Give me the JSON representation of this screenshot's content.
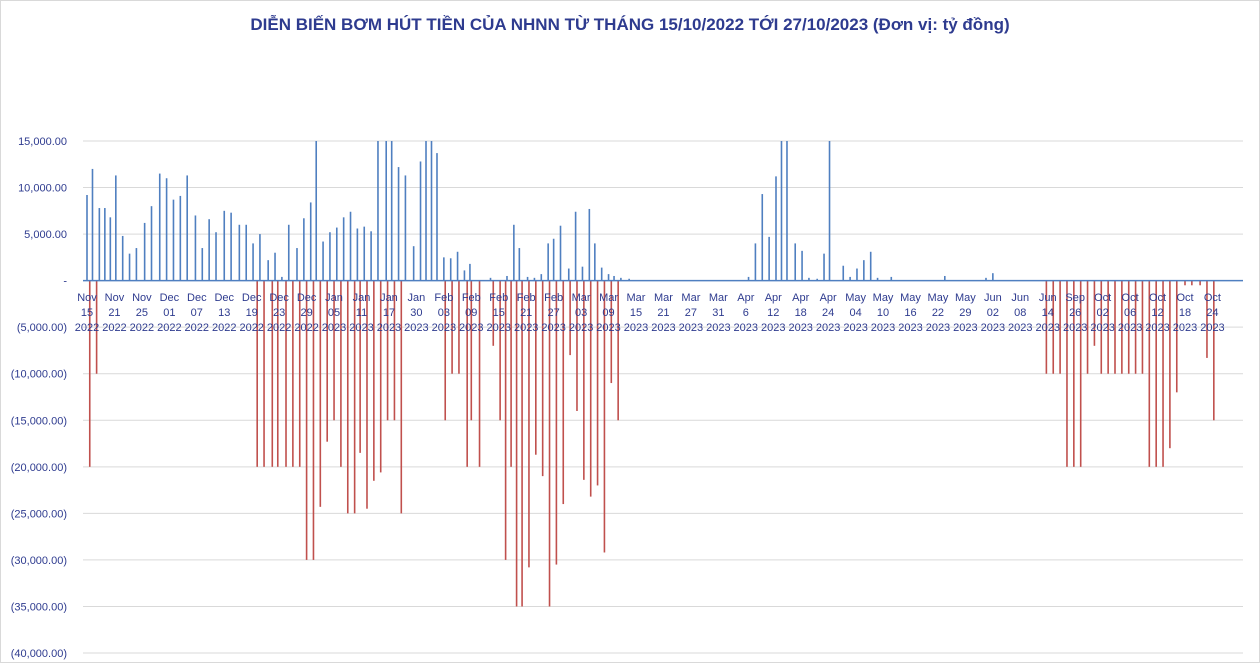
{
  "chart_data": {
    "type": "bar",
    "title": "DIỄN BIẾN BƠM HÚT TIỀN CỦA NHNN TỪ THÁNG 15/10/2022 TỚI 27/10/2023 (Đơn vị: tỷ đồng)",
    "xlabel": "",
    "ylabel": "",
    "ylim": [
      -40000,
      15000
    ],
    "y_ticks": [
      "15,000.00",
      "10,000.00",
      "5,000.00",
      "-",
      "(5,000.00)",
      "(10,000.00)",
      "(15,000.00)",
      "(20,000.00)",
      "(25,000.00)",
      "(30,000.00)",
      "(35,000.00)",
      "(40,000.00)"
    ],
    "y_tick_values": [
      15000,
      10000,
      5000,
      0,
      -5000,
      -10000,
      -15000,
      -20000,
      -25000,
      -30000,
      -35000,
      -40000
    ],
    "grid": true,
    "colors": {
      "injection": "#4f7fc0",
      "withdrawal": "#c0504d",
      "axis": "#4f7fc0",
      "text": "#2e3b8f",
      "grid": "#d9d9d9"
    },
    "x_ticks": [
      [
        "Nov",
        "15",
        "2022"
      ],
      [
        "Nov",
        "21",
        "2022"
      ],
      [
        "Nov",
        "25",
        "2022"
      ],
      [
        "Dec",
        "01",
        "2022"
      ],
      [
        "Dec",
        "07",
        "2022"
      ],
      [
        "Dec",
        "13",
        "2022"
      ],
      [
        "Dec",
        "19",
        "2022"
      ],
      [
        "Dec",
        "23",
        "2022"
      ],
      [
        "Dec",
        "29",
        "2022"
      ],
      [
        "Jan",
        "05",
        "2023"
      ],
      [
        "Jan",
        "11",
        "2023"
      ],
      [
        "Jan",
        "17",
        "2023"
      ],
      [
        "Jan",
        "30",
        "2023"
      ],
      [
        "Feb",
        "03",
        "2023"
      ],
      [
        "Feb",
        "09",
        "2023"
      ],
      [
        "Feb",
        "15",
        "2023"
      ],
      [
        "Feb",
        "21",
        "2023"
      ],
      [
        "Feb",
        "27",
        "2023"
      ],
      [
        "Mar",
        "03",
        "2023"
      ],
      [
        "Mar",
        "09",
        "2023"
      ],
      [
        "Mar",
        "15",
        "2023"
      ],
      [
        "Mar",
        "21",
        "2023"
      ],
      [
        "Mar",
        "27",
        "2023"
      ],
      [
        "Mar",
        "31",
        "2023"
      ],
      [
        "Apr",
        "6",
        "2023"
      ],
      [
        "Apr",
        "12",
        "2023"
      ],
      [
        "Apr",
        "18",
        "2023"
      ],
      [
        "Apr",
        "24",
        "2023"
      ],
      [
        "May",
        "04",
        "2023"
      ],
      [
        "May",
        "10",
        "2023"
      ],
      [
        "May",
        "16",
        "2023"
      ],
      [
        "May",
        "22",
        "2023"
      ],
      [
        "May",
        "29",
        "2023"
      ],
      [
        "Jun",
        "02",
        "2023"
      ],
      [
        "Jun",
        "08",
        "2023"
      ],
      [
        "Jun",
        "14",
        "2023"
      ],
      [
        "Sep",
        "26",
        "2023"
      ],
      [
        "Oct",
        "02",
        "2023"
      ],
      [
        "Oct",
        "06",
        "2023"
      ],
      [
        "Oct",
        "12",
        "2023"
      ],
      [
        "Oct",
        "18",
        "2023"
      ],
      [
        "Oct",
        "24",
        "2023"
      ]
    ],
    "bars": {
      "injection": [
        [
          0.0,
          9200
        ],
        [
          0.2,
          12000
        ],
        [
          0.45,
          7800
        ],
        [
          0.65,
          7800
        ],
        [
          0.85,
          6800
        ],
        [
          1.05,
          11300
        ],
        [
          1.3,
          4800
        ],
        [
          1.55,
          2900
        ],
        [
          1.8,
          3500
        ],
        [
          2.1,
          6200
        ],
        [
          2.35,
          8000
        ],
        [
          2.65,
          11500
        ],
        [
          2.9,
          11000
        ],
        [
          3.15,
          8700
        ],
        [
          3.4,
          9100
        ],
        [
          3.65,
          11300
        ],
        [
          3.95,
          7000
        ],
        [
          4.2,
          3500
        ],
        [
          4.45,
          6600
        ],
        [
          4.7,
          5200
        ],
        [
          5.0,
          7500
        ],
        [
          5.25,
          7300
        ],
        [
          5.55,
          6000
        ],
        [
          5.8,
          6000
        ],
        [
          6.05,
          4000
        ],
        [
          6.3,
          5000
        ],
        [
          6.6,
          2200
        ],
        [
          6.85,
          3000
        ],
        [
          7.1,
          400
        ],
        [
          7.35,
          6000
        ],
        [
          7.65,
          3500
        ],
        [
          7.9,
          6700
        ],
        [
          8.15,
          8400
        ],
        [
          8.35,
          15000
        ],
        [
          8.6,
          4200
        ],
        [
          8.85,
          5200
        ],
        [
          9.1,
          5700
        ],
        [
          9.35,
          6800
        ],
        [
          9.6,
          7400
        ],
        [
          9.85,
          5600
        ],
        [
          10.1,
          5800
        ],
        [
          10.35,
          5300
        ],
        [
          10.6,
          15000
        ],
        [
          10.9,
          15000
        ],
        [
          11.1,
          15000
        ],
        [
          11.35,
          12200
        ],
        [
          11.6,
          11300
        ],
        [
          11.9,
          3700
        ],
        [
          12.15,
          12800
        ],
        [
          12.35,
          15000
        ],
        [
          12.55,
          15000
        ],
        [
          12.75,
          13700
        ],
        [
          13.0,
          2500
        ],
        [
          13.25,
          2400
        ],
        [
          13.5,
          3100
        ],
        [
          13.75,
          1100
        ],
        [
          13.95,
          1800
        ],
        [
          14.7,
          300
        ],
        [
          15.3,
          500
        ],
        [
          15.55,
          6000
        ],
        [
          15.75,
          3500
        ],
        [
          16.05,
          400
        ],
        [
          16.3,
          300
        ],
        [
          16.55,
          700
        ],
        [
          16.8,
          4000
        ],
        [
          17.0,
          4500
        ],
        [
          17.25,
          5900
        ],
        [
          17.55,
          1300
        ],
        [
          17.8,
          7400
        ],
        [
          18.05,
          1500
        ],
        [
          18.3,
          7700
        ],
        [
          18.5,
          4000
        ],
        [
          18.75,
          1400
        ],
        [
          19.0,
          700
        ],
        [
          19.2,
          500
        ],
        [
          19.45,
          300
        ],
        [
          19.75,
          200
        ],
        [
          24.1,
          400
        ],
        [
          24.35,
          4000
        ],
        [
          24.6,
          9300
        ],
        [
          24.85,
          4700
        ],
        [
          25.1,
          11200
        ],
        [
          25.3,
          15000
        ],
        [
          25.5,
          15000
        ],
        [
          25.8,
          4000
        ],
        [
          26.05,
          3200
        ],
        [
          26.3,
          300
        ],
        [
          26.6,
          200
        ],
        [
          26.85,
          2900
        ],
        [
          27.05,
          15000
        ],
        [
          27.55,
          1600
        ],
        [
          27.8,
          400
        ],
        [
          28.05,
          1300
        ],
        [
          28.3,
          2200
        ],
        [
          28.55,
          3100
        ],
        [
          28.8,
          300
        ],
        [
          29.3,
          400
        ],
        [
          31.25,
          500
        ],
        [
          32.75,
          300
        ],
        [
          33.0,
          800
        ]
      ],
      "withdrawal": [
        [
          0.1,
          -20000
        ],
        [
          0.35,
          -10000
        ],
        [
          6.2,
          -20000
        ],
        [
          6.45,
          -20000
        ],
        [
          6.75,
          -20000
        ],
        [
          6.95,
          -20000
        ],
        [
          7.25,
          -20000
        ],
        [
          7.5,
          -20000
        ],
        [
          7.75,
          -20000
        ],
        [
          8.0,
          -30000
        ],
        [
          8.25,
          -30000
        ],
        [
          8.5,
          -24300
        ],
        [
          8.75,
          -17300
        ],
        [
          9.0,
          -15000
        ],
        [
          9.25,
          -20000
        ],
        [
          9.5,
          -25000
        ],
        [
          9.75,
          -25000
        ],
        [
          9.95,
          -18500
        ],
        [
          10.2,
          -24500
        ],
        [
          10.45,
          -21500
        ],
        [
          10.7,
          -20600
        ],
        [
          10.95,
          -15000
        ],
        [
          11.2,
          -15000
        ],
        [
          11.45,
          -25000
        ],
        [
          13.05,
          -15000
        ],
        [
          13.3,
          -10000
        ],
        [
          13.55,
          -10000
        ],
        [
          13.85,
          -20000
        ],
        [
          14.0,
          -15000
        ],
        [
          14.3,
          -20000
        ],
        [
          14.8,
          -7000
        ],
        [
          15.05,
          -15000
        ],
        [
          15.25,
          -30000
        ],
        [
          15.45,
          -20000
        ],
        [
          15.65,
          -35000
        ],
        [
          15.85,
          -35000
        ],
        [
          16.1,
          -30800
        ],
        [
          16.35,
          -18700
        ],
        [
          16.6,
          -21000
        ],
        [
          16.85,
          -35000
        ],
        [
          17.1,
          -30500
        ],
        [
          17.35,
          -24000
        ],
        [
          17.6,
          -8000
        ],
        [
          17.85,
          -14000
        ],
        [
          18.1,
          -21400
        ],
        [
          18.35,
          -23200
        ],
        [
          18.6,
          -22000
        ],
        [
          18.85,
          -29200
        ],
        [
          19.1,
          -11000
        ],
        [
          19.35,
          -15000
        ],
        [
          34.95,
          -10000
        ],
        [
          35.2,
          -10000
        ],
        [
          35.45,
          -10000
        ],
        [
          35.7,
          -20000
        ],
        [
          35.95,
          -20000
        ],
        [
          36.2,
          -20000
        ],
        [
          36.45,
          -10000
        ],
        [
          36.7,
          -7000
        ],
        [
          36.95,
          -10000
        ],
        [
          37.2,
          -10000
        ],
        [
          37.45,
          -10000
        ],
        [
          37.7,
          -10000
        ],
        [
          37.95,
          -10000
        ],
        [
          38.2,
          -10000
        ],
        [
          38.45,
          -10000
        ],
        [
          38.7,
          -20000
        ],
        [
          38.95,
          -20000
        ],
        [
          39.2,
          -20000
        ],
        [
          39.45,
          -18000
        ],
        [
          39.7,
          -12000
        ],
        [
          40.0,
          -500
        ],
        [
          40.25,
          -500
        ],
        [
          40.55,
          -500
        ],
        [
          40.8,
          -8300
        ],
        [
          41.05,
          -15000
        ]
      ]
    }
  }
}
